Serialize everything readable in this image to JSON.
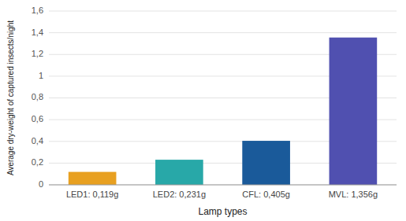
{
  "chart_data": {
    "type": "bar",
    "categories": [
      "LED1: 0,119g",
      "LED2: 0,231g",
      "CFL: 0,405g",
      "MVL: 1,356g"
    ],
    "values": [
      0.119,
      0.231,
      0.405,
      1.356
    ],
    "colors": [
      "#E8A020",
      "#28A8A8",
      "#1A5A9A",
      "#5050B0"
    ],
    "xlabel": "Lamp types",
    "ylabel": "Average dry-weight of captured insects/night",
    "ylim": [
      0,
      1.6
    ],
    "yticks": [
      0,
      {
        "value": 0.2,
        "label": "0,2"
      },
      {
        "value": 0.4,
        "label": "0,4"
      },
      {
        "value": 0.6,
        "label": "0,6"
      },
      {
        "value": 0.8,
        "label": "0,8"
      },
      1,
      {
        "value": 1.2,
        "label": "1,2"
      },
      {
        "value": 1.4,
        "label": "1,4"
      },
      {
        "value": 1.6,
        "label": "1,6"
      }
    ],
    "grid": true
  }
}
